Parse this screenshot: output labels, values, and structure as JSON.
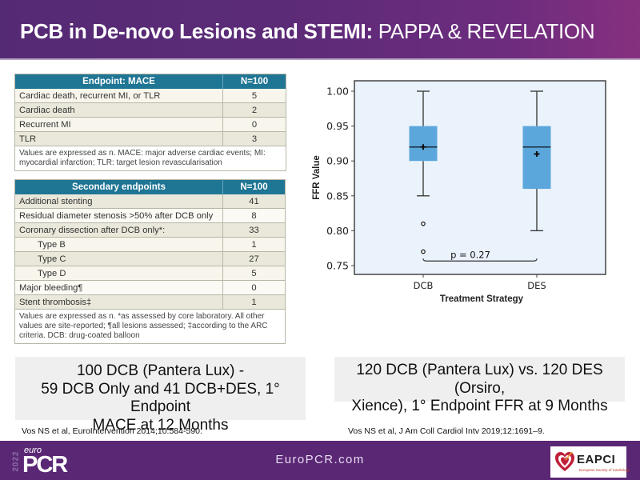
{
  "slide": {
    "title_bold": "PCB in De-novo Lesions and STEMI:",
    "title_light": "PAPPA & REVELATION"
  },
  "mace_table": {
    "headers": [
      "Endpoint: MACE",
      "N=100"
    ],
    "rows": [
      {
        "label": "Cardiac death, recurrent MI, or TLR",
        "value": "5"
      },
      {
        "label": "Cardiac death",
        "value": "2"
      },
      {
        "label": "Recurrent MI",
        "value": "0"
      },
      {
        "label": "TLR",
        "value": "3"
      }
    ],
    "footnote": "Values are expressed as n. MACE: major adverse cardiac events; MI: myocardial infarction; TLR: target lesion revascularisation"
  },
  "secondary_table": {
    "headers": [
      "Secondary endpoints",
      "N=100"
    ],
    "rows": [
      {
        "label": "Additional stenting",
        "value": "41",
        "indent": false
      },
      {
        "label": "Residual diameter stenosis >50% after DCB only",
        "value": "8",
        "indent": false
      },
      {
        "label": "Coronary dissection after DCB only*:",
        "value": "33",
        "indent": false
      },
      {
        "label": "Type B",
        "value": "1",
        "indent": true
      },
      {
        "label": "Type C",
        "value": "27",
        "indent": true
      },
      {
        "label": "Type D",
        "value": "5",
        "indent": true
      },
      {
        "label": "Major bleeding¶",
        "value": "0",
        "indent": false
      },
      {
        "label": "Stent thrombosis‡",
        "value": "1",
        "indent": false
      }
    ],
    "footnote": "Values are expressed as n. *as assessed by core laboratory. All other values are site-reported; ¶all lesions assessed; ‡according to the ARC criteria. DCB: drug-coated balloon"
  },
  "chart_data": {
    "type": "boxplot",
    "title": "",
    "xlabel": "Treatment Strategy",
    "ylabel": "FFR Value",
    "ylim": [
      0.735,
      1.02
    ],
    "yticks": [
      0.75,
      0.8,
      0.85,
      0.9,
      0.95,
      1.0
    ],
    "ytick_labels": [
      "0.75",
      "0.80",
      "0.85",
      "0.90",
      "0.95",
      "1.00"
    ],
    "categories": [
      "DCB",
      "DES"
    ],
    "series": [
      {
        "name": "DCB",
        "whisker_low": 0.85,
        "q1": 0.9,
        "median": 0.92,
        "q3": 0.95,
        "whisker_high": 1.0,
        "mean": 0.92,
        "outliers": [
          0.81,
          0.77
        ]
      },
      {
        "name": "DES",
        "whisker_low": 0.8,
        "q1": 0.86,
        "median": 0.92,
        "q3": 0.95,
        "whisker_high": 1.0,
        "mean": 0.91,
        "outliers": []
      }
    ],
    "annotation": {
      "text": "p = 0.27",
      "between": [
        "DCB",
        "DES"
      ],
      "y": 0.76
    },
    "grid": false,
    "colors": {
      "box": "#5ba7dc",
      "background": "#eaf2fb",
      "line": "#333333"
    }
  },
  "summaries": {
    "left": [
      "100 DCB (Pantera Lux) -",
      "59 DCB Only and 41 DCB+DES, 1° Endpoint",
      "MACE at 12 Months"
    ],
    "right": [
      "120 DCB (Pantera Lux) vs. 120 DES (Orsiro,",
      "Xience), 1° Endpoint FFR at 9 Months"
    ]
  },
  "citations": {
    "left": "Vos NS et al, EuroIntervention 2014;10:584-590.",
    "right": "Vos NS et al, J Am  Coll Cardiol Intv 2019;12:1691–9."
  },
  "footer": {
    "year": "2022",
    "brand_prefix": "euro",
    "brand": "PCR",
    "website": "EuroPCR.com",
    "partner": "EAPCI",
    "partner_sub": "European Society of Cardiology"
  },
  "colors": {
    "brand_purple": "#5a2775",
    "table_header": "#1f7594"
  }
}
